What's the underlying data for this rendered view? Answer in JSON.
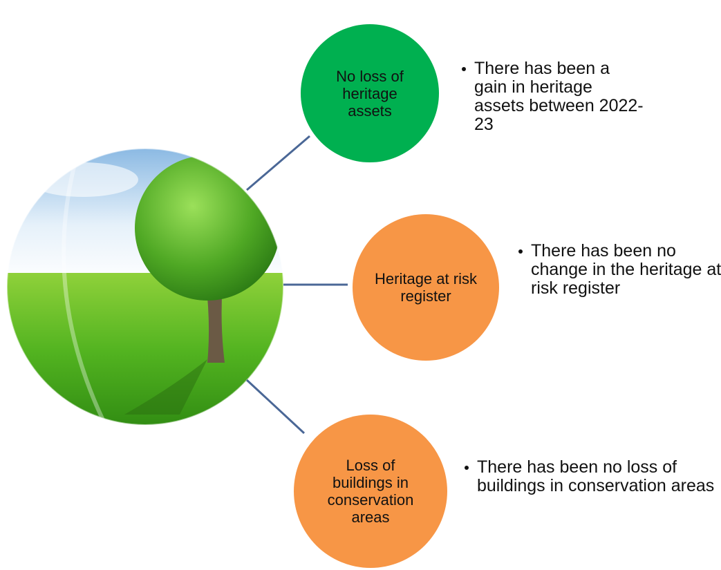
{
  "nodes": [
    {
      "label": "No loss of heritage assets",
      "bullet": "There has been a gain in heritage assets between 2022-23"
    },
    {
      "label": "Heritage at risk register",
      "bullet": "There has been no change in the heritage at risk register"
    },
    {
      "label": "Loss of buildings in conservation areas",
      "bullet": "There has been no loss of buildings in conservation areas"
    }
  ]
}
